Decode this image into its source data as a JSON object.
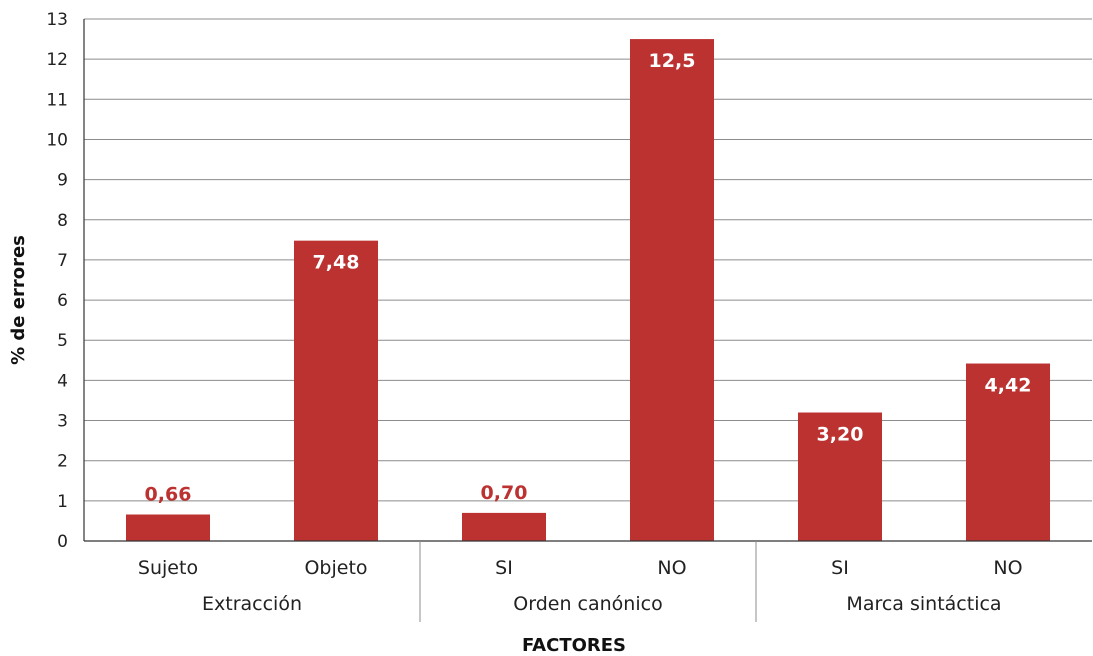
{
  "chart_data": {
    "type": "bar",
    "xlabel": "FACTORES",
    "ylabel": "% de errores",
    "ylim": [
      0,
      13
    ],
    "yticks": [
      "0",
      "1",
      "2",
      "3",
      "4",
      "5",
      "6",
      "7",
      "8",
      "9",
      "10",
      "11",
      "12",
      "13"
    ],
    "grid": true,
    "bar_color": "#bb3230",
    "categories": [
      "Sujeto",
      "Objeto",
      "SI",
      "NO",
      "SI",
      "NO"
    ],
    "values": [
      0.66,
      7.48,
      0.7,
      12.5,
      3.2,
      4.42
    ],
    "value_labels": [
      "0,66",
      "7,48",
      "0,70",
      "12,5",
      "3,20",
      "4,42"
    ],
    "groups": [
      {
        "label": "Extracción",
        "categories": [
          0,
          1
        ]
      },
      {
        "label": "Orden canónico",
        "categories": [
          2,
          3
        ]
      },
      {
        "label": "Marca sintáctica",
        "categories": [
          4,
          5
        ]
      }
    ]
  }
}
